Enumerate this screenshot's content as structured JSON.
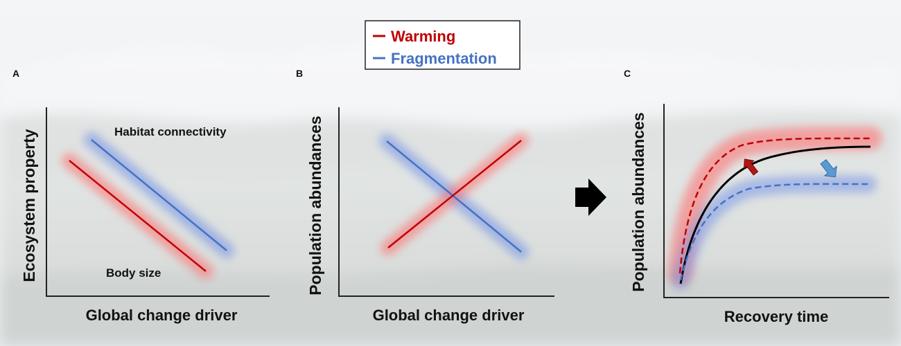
{
  "legend": {
    "items": [
      {
        "label": "Warming",
        "color": "#c00000"
      },
      {
        "label": "Fragmentation",
        "color": "#4472c4"
      }
    ]
  },
  "panels": {
    "a": {
      "letter": "A",
      "ylabel": "Ecosystem property",
      "xlabel": "Global change driver",
      "habitat_label": "Habitat connectivity",
      "body_label": "Body size"
    },
    "b": {
      "letter": "B",
      "ylabel": "Population abundances",
      "xlabel": "Global change driver"
    },
    "c": {
      "letter": "C",
      "ylabel": "Population abundances",
      "xlabel": "Recovery time"
    }
  },
  "colors": {
    "warming": "#c00000",
    "fragmentation": "#4472c4",
    "baseline": "#000000",
    "warming_glow": "#ff6b6b",
    "fragmentation_glow": "#6f8fe6",
    "warming_arrow": "#b01818",
    "fragmentation_arrow": "#5b9bd5"
  },
  "icons": {
    "transition": "right-arrow-icon",
    "warming_effect": "up-arrow-icon",
    "fragmentation_effect": "down-arrow-icon"
  }
}
